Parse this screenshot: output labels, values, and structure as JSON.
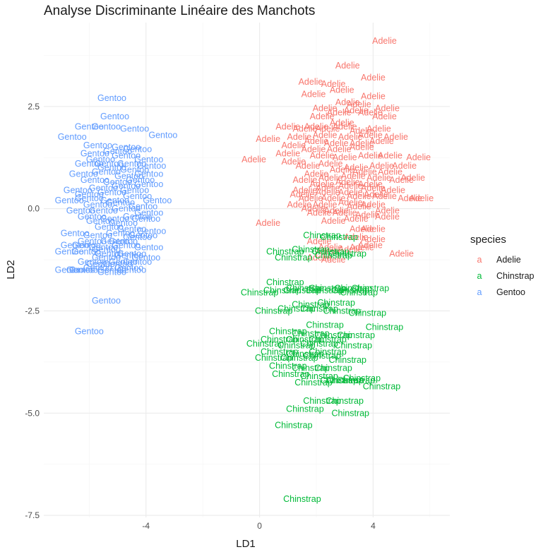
{
  "chart_data": {
    "type": "scatter",
    "title": "Analyse Discriminante Linéaire des Manchots",
    "xlabel": "LD1",
    "ylabel": "LD2",
    "xlim": [
      -7.6,
      6.7
    ],
    "ylim": [
      -7.55,
      4.55
    ],
    "x_ticks": [
      -4,
      0,
      4
    ],
    "x_tick_labels": [
      "-4",
      "0",
      "4"
    ],
    "y_ticks": [
      2.5,
      0,
      -2.5,
      -5,
      -7.5
    ],
    "y_tick_labels": [
      "2.5",
      "0.0",
      "-2.5",
      "-5.0",
      "-7.5"
    ],
    "grid": true,
    "legend": {
      "title": "species",
      "position": "right",
      "key_glyph": "a",
      "entries": [
        {
          "label": "Adelie",
          "color": "#F8766D"
        },
        {
          "label": "Chinstrap",
          "color": "#00BA38"
        },
        {
          "label": "Gentoo",
          "color": "#619CFF"
        }
      ]
    },
    "series": [
      {
        "name": "Adelie",
        "color": "#F8766D",
        "x": [
          4.4,
          3.1,
          4.0,
          1.8,
          2.6,
          1.9,
          2.9,
          4.0,
          3.1,
          3.5,
          4.5,
          2.3,
          2.2,
          2.8,
          3.4,
          3.9,
          4.4,
          2.0,
          2.9,
          1.0,
          1.6,
          2.4,
          3.0,
          3.6,
          4.2,
          1.4,
          2.3,
          3.2,
          3.9,
          4.8,
          0.3,
          1.2,
          2.0,
          2.7,
          3.6,
          4.3,
          1.0,
          1.9,
          2.8,
          3.6,
          4.6,
          -0.2,
          1.2,
          2.2,
          3.0,
          3.9,
          5.6,
          1.7,
          2.5,
          3.4,
          4.3,
          5.1,
          2.0,
          2.9,
          3.7,
          4.6,
          1.6,
          2.5,
          3.3,
          4.2,
          5.4,
          2.2,
          3.1,
          3.9,
          5.0,
          1.6,
          2.4,
          3.2,
          4.0,
          4.7,
          1.5,
          2.4,
          3.2,
          4.1,
          5.3,
          1.8,
          2.6,
          3.5,
          4.4,
          1.4,
          2.3,
          3.2,
          4.0,
          5.7,
          1.9,
          2.7,
          3.5,
          4.5,
          2.1,
          3.0,
          3.8,
          2.6,
          3.4,
          4.5,
          0.3,
          3.6,
          4.0,
          2.1,
          3.4,
          4.0,
          2.5,
          3.6,
          5.0,
          2.4,
          3.2,
          2.1,
          2.6,
          3.9
        ],
        "y": [
          4.1,
          3.5,
          3.2,
          3.1,
          3.05,
          2.8,
          2.9,
          2.75,
          2.6,
          2.55,
          2.45,
          2.45,
          2.25,
          2.35,
          2.4,
          2.35,
          2.25,
          2.0,
          2.1,
          2.0,
          1.95,
          1.95,
          2.0,
          1.9,
          1.95,
          1.75,
          1.8,
          1.75,
          1.8,
          1.75,
          1.7,
          1.55,
          1.65,
          1.6,
          1.6,
          1.65,
          1.35,
          1.45,
          1.45,
          1.5,
          1.3,
          1.2,
          1.15,
          1.3,
          1.25,
          1.3,
          1.25,
          1.05,
          1.1,
          1.0,
          1.05,
          1.05,
          0.85,
          0.95,
          0.9,
          0.9,
          0.7,
          0.75,
          0.8,
          0.75,
          0.75,
          0.6,
          0.65,
          0.6,
          0.7,
          0.45,
          0.5,
          0.55,
          0.5,
          0.45,
          0.35,
          0.4,
          0.4,
          0.35,
          0.25,
          0.25,
          0.25,
          0.3,
          0.3,
          0.1,
          0.1,
          0.15,
          0.1,
          0.25,
          0.0,
          -0.05,
          0.05,
          -0.05,
          -0.1,
          -0.1,
          -0.15,
          -0.3,
          -0.25,
          -0.2,
          -0.35,
          -0.5,
          -0.5,
          -0.8,
          -0.7,
          -0.75,
          -0.95,
          -0.95,
          -1.1,
          -1.05,
          -1.0,
          -1.2,
          -1.25,
          -0.9
        ]
      },
      {
        "name": "Chinstrap",
        "color": "#00BA38",
        "x": [
          2.2,
          2.8,
          0.9,
          1.8,
          2.5,
          3.1,
          1.2,
          2.6,
          0.9,
          1.6,
          2.4,
          3.3,
          3.9,
          0.0,
          0.8,
          1.5,
          2.3,
          3.2,
          3.5,
          1.8,
          2.7,
          0.5,
          1.3,
          2.1,
          2.9,
          3.8,
          2.3,
          4.4,
          1.0,
          1.8,
          2.6,
          3.4,
          0.7,
          1.6,
          2.4,
          0.2,
          1.3,
          2.1,
          3.3,
          0.7,
          1.6,
          2.4,
          0.5,
          1.4,
          2.2,
          3.1,
          1.0,
          1.8,
          2.6,
          1.1,
          2.1,
          3.0,
          3.6,
          1.9,
          2.8,
          3.4,
          4.3,
          2.2,
          3.0,
          1.6,
          3.2,
          1.2,
          1.5
        ],
        "y": [
          -0.65,
          -0.7,
          -1.05,
          -1.0,
          -1.05,
          -1.1,
          -1.2,
          -1.15,
          -1.8,
          -1.95,
          -1.95,
          -1.95,
          -1.95,
          -2.05,
          -2.0,
          -2.0,
          -2.0,
          -2.0,
          -2.05,
          -2.35,
          -2.3,
          -2.5,
          -2.45,
          -2.45,
          -2.5,
          -2.55,
          -2.85,
          -2.9,
          -3.0,
          -3.05,
          -3.1,
          -3.1,
          -3.2,
          -3.2,
          -3.2,
          -3.3,
          -3.35,
          -3.3,
          -3.35,
          -3.5,
          -3.55,
          -3.5,
          -3.65,
          -3.65,
          -3.6,
          -3.7,
          -3.85,
          -3.9,
          -3.9,
          -4.05,
          -4.1,
          -4.2,
          -4.15,
          -4.25,
          -4.2,
          -4.2,
          -4.35,
          -4.7,
          -4.7,
          -4.9,
          -5.0,
          -5.3,
          -7.1
        ]
      },
      {
        "name": "Gentoo",
        "color": "#619CFF",
        "x": [
          -5.2,
          -5.1,
          -6.0,
          -5.4,
          -4.4,
          -3.4,
          -6.6,
          -5.7,
          -4.7,
          -5.8,
          -5.0,
          -4.3,
          -5.6,
          -4.7,
          -3.9,
          -5.3,
          -4.5,
          -3.8,
          -6.0,
          -5.2,
          -4.4,
          -6.2,
          -5.4,
          -4.6,
          -3.9,
          -5.8,
          -5.0,
          -4.2,
          -6.4,
          -5.5,
          -4.7,
          -3.9,
          -6.0,
          -5.2,
          -4.4,
          -6.7,
          -6.0,
          -5.1,
          -4.3,
          -3.6,
          -5.7,
          -4.9,
          -4.1,
          -6.3,
          -5.5,
          -4.7,
          -3.9,
          -5.9,
          -5.1,
          -4.3,
          -5.6,
          -4.8,
          -4.0,
          -5.3,
          -4.5,
          -3.8,
          -6.5,
          -5.7,
          -4.9,
          -4.1,
          -5.9,
          -5.1,
          -4.3,
          -5.5,
          -4.7,
          -3.9,
          -6.7,
          -6.1,
          -5.3,
          -4.5,
          -5.4,
          -4.6,
          -4.0,
          -5.9,
          -5.0,
          -4.3,
          -6.5,
          -6.1,
          -5.6,
          -4.8,
          -5.4,
          -4.8,
          -6.3,
          -5.7,
          -5.2,
          -4.6,
          -6.7,
          -6.2,
          -5.2,
          -4.5,
          -5.4,
          -6.0
        ],
        "y": [
          2.7,
          2.25,
          2.0,
          2.0,
          1.95,
          1.8,
          1.75,
          1.55,
          1.5,
          1.35,
          1.4,
          1.45,
          1.2,
          1.3,
          1.2,
          1.1,
          1.1,
          1.05,
          1.1,
          1.0,
          0.95,
          0.85,
          0.9,
          0.8,
          0.85,
          0.7,
          0.65,
          0.7,
          0.45,
          0.5,
          0.55,
          0.6,
          0.35,
          0.4,
          0.45,
          0.2,
          0.25,
          0.2,
          0.3,
          0.2,
          0.1,
          0.15,
          0.05,
          -0.05,
          -0.05,
          0.0,
          -0.1,
          -0.2,
          -0.25,
          -0.2,
          -0.3,
          -0.35,
          -0.25,
          -0.45,
          -0.5,
          -0.55,
          -0.6,
          -0.65,
          -0.6,
          -0.65,
          -0.8,
          -0.8,
          -0.7,
          -0.95,
          -0.9,
          -0.95,
          -1.05,
          -1.05,
          -1.1,
          -1.1,
          -1.2,
          -1.15,
          -1.2,
          -1.3,
          -1.35,
          -1.3,
          -0.9,
          -0.9,
          -1.35,
          -1.3,
          -1.0,
          -0.8,
          -1.5,
          -1.45,
          -1.55,
          -1.45,
          -1.5,
          -1.5,
          -1.5,
          -1.5,
          -2.25,
          -3.0
        ]
      }
    ]
  }
}
